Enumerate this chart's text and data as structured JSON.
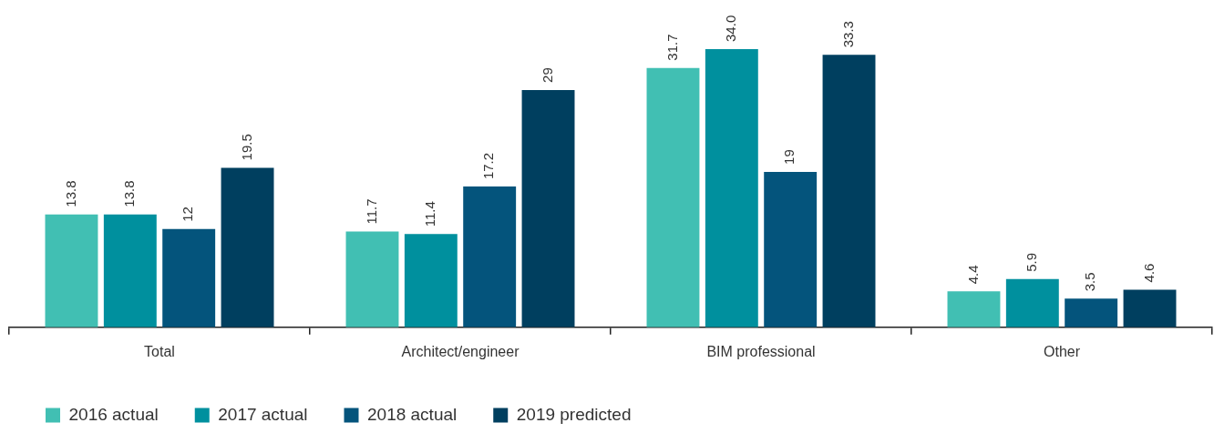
{
  "chart_data": {
    "type": "bar",
    "categories": [
      "Total",
      "Architect/engineer",
      "BIM professional",
      "Other"
    ],
    "series": [
      {
        "name": "2016 actual",
        "color": "#41bfb3",
        "values": [
          13.8,
          11.7,
          31.7,
          4.4
        ],
        "value_labels": [
          "13.8",
          "11.7",
          "31.7",
          "4.4"
        ]
      },
      {
        "name": "2017 actual",
        "color": "#00909e",
        "values": [
          13.8,
          11.4,
          34.0,
          5.9
        ],
        "value_labels": [
          "13.8",
          "11.4",
          "34.0",
          "5.9"
        ]
      },
      {
        "name": "2018 actual",
        "color": "#04547c",
        "values": [
          12,
          17.2,
          19,
          3.5
        ],
        "value_labels": [
          "12",
          "17.2",
          "19",
          "3.5"
        ]
      },
      {
        "name": "2019 predicted",
        "color": "#003f5f",
        "values": [
          19.5,
          29,
          33.3,
          4.6
        ],
        "value_labels": [
          "19.5",
          "29",
          "33.3",
          "4.6"
        ]
      }
    ],
    "legend": "bottom left",
    "grid": false
  }
}
